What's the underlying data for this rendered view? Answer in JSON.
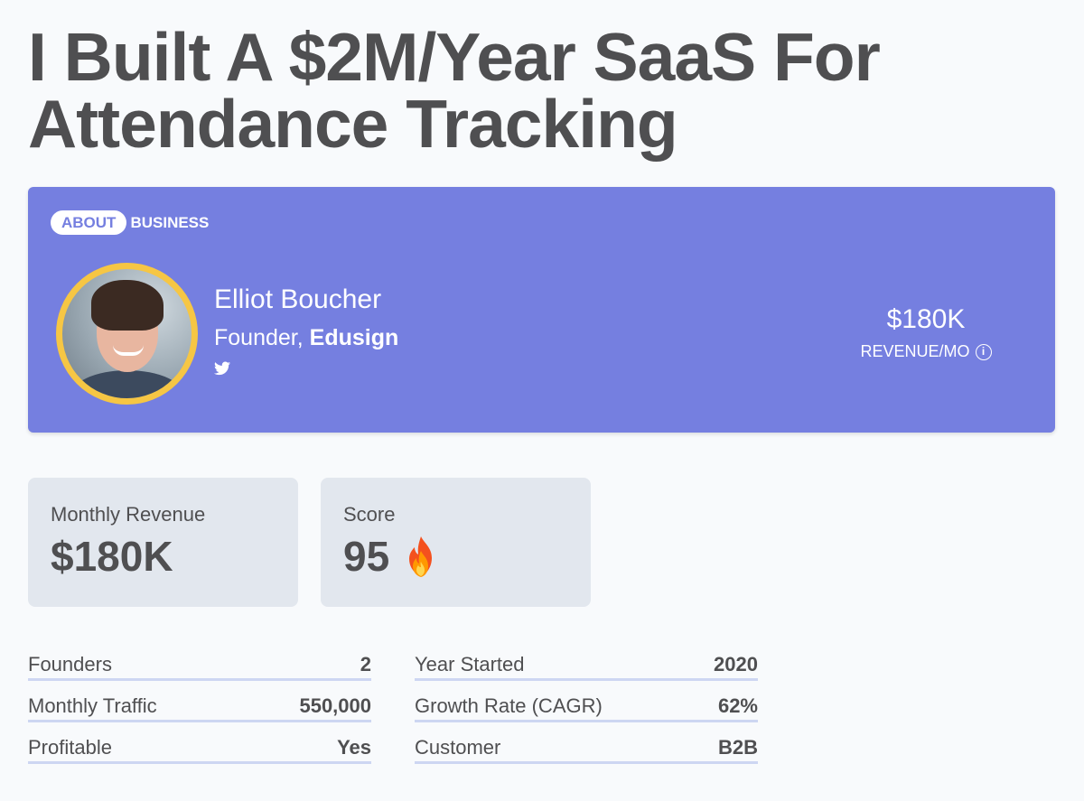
{
  "title": "I Built A $2M/Year SaaS For Attendance Tracking",
  "tabs": [
    {
      "label": "ABOUT"
    },
    {
      "label": "BUSINESS"
    }
  ],
  "founder": {
    "name": "Elliot Boucher",
    "role_prefix": "Founder,",
    "company": "Edusign"
  },
  "revenue_badge": {
    "value": "$180K",
    "label": "REVENUE/MO"
  },
  "stats": [
    {
      "label": "Monthly Revenue",
      "value": "$180K"
    },
    {
      "label": "Score",
      "value": "95"
    }
  ],
  "metrics_left": [
    {
      "label": "Founders",
      "value": "2"
    },
    {
      "label": "Monthly Traffic",
      "value": "550,000"
    },
    {
      "label": "Profitable",
      "value": "Yes"
    }
  ],
  "metrics_right": [
    {
      "label": "Year Started",
      "value": "2020"
    },
    {
      "label": "Growth Rate (CAGR)",
      "value": "62%"
    },
    {
      "label": "Customer",
      "value": "B2B"
    }
  ],
  "colors": {
    "hero_bg": "#757fe0",
    "avatar_ring": "#f6c644",
    "card_bg": "#e2e7ee",
    "underline": "#cdd6f2"
  },
  "icons": [
    "twitter-icon",
    "info-icon",
    "flame-icon"
  ]
}
